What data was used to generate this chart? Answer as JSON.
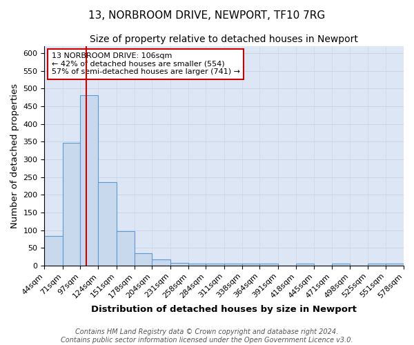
{
  "title": "13, NORBROOM DRIVE, NEWPORT, TF10 7RG",
  "subtitle": "Size of property relative to detached houses in Newport",
  "xlabel": "Distribution of detached houses by size in Newport",
  "ylabel": "Number of detached properties",
  "bin_edges": [
    44,
    71,
    97,
    124,
    151,
    178,
    204,
    231,
    258,
    284,
    311,
    338,
    364,
    391,
    418,
    445,
    471,
    498,
    525,
    551,
    578
  ],
  "bin_counts": [
    83,
    347,
    480,
    235,
    98,
    35,
    18,
    8,
    5,
    5,
    5,
    5,
    5,
    0,
    5,
    0,
    5,
    0,
    5,
    5
  ],
  "bar_facecolor": "#c8d9ee",
  "bar_edgecolor": "#5b9bd5",
  "property_size": 106,
  "vline_color": "#cc0000",
  "annotation_text": "13 NORBROOM DRIVE: 106sqm\n← 42% of detached houses are smaller (554)\n57% of semi-detached houses are larger (741) →",
  "annotation_box_edgecolor": "#cc0000",
  "annotation_box_facecolor": "#ffffff",
  "grid_color": "#ccd5e5",
  "background_color": "#dce6f5",
  "fig_background": "#ffffff",
  "ylim": [
    0,
    620
  ],
  "yticks": [
    0,
    50,
    100,
    150,
    200,
    250,
    300,
    350,
    400,
    450,
    500,
    550,
    600
  ],
  "title_fontsize": 11,
  "subtitle_fontsize": 10,
  "axis_label_fontsize": 9.5,
  "tick_fontsize": 8,
  "annotation_fontsize": 8,
  "footer_fontsize": 7
}
